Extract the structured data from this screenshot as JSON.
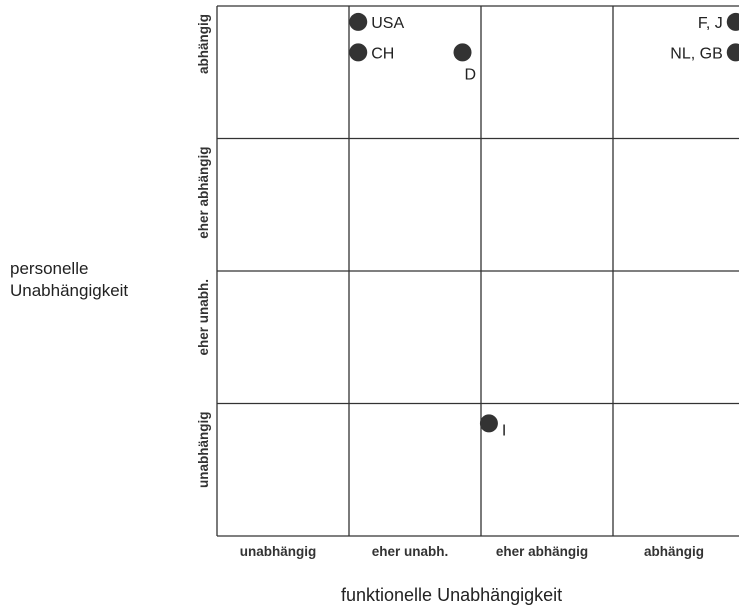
{
  "chart_data": {
    "type": "scatter",
    "xlabel": "funktionelle Unabhängigkeit",
    "ylabel_lines": [
      "personelle",
      "Unabhängigkeit"
    ],
    "x_categories": [
      "unabhängig",
      "eher unabh.",
      "eher abhängig",
      "abhängig"
    ],
    "y_categories": [
      "unabhängig",
      "eher unabh.",
      "eher abhängig",
      "abhängig"
    ],
    "xlim": [
      0,
      4
    ],
    "ylim": [
      0,
      4
    ],
    "grid": true,
    "marker_color": "#333333",
    "points": [
      {
        "label": "USA",
        "x": 1.07,
        "y": 3.88
      },
      {
        "label": "CH",
        "x": 1.07,
        "y": 3.65
      },
      {
        "label": "D",
        "x": 1.86,
        "y": 3.65
      },
      {
        "label": "F, J",
        "x": 3.93,
        "y": 3.88
      },
      {
        "label": "NL, GB",
        "x": 3.93,
        "y": 3.65
      },
      {
        "label": "I",
        "x": 2.06,
        "y": 0.85
      }
    ]
  }
}
